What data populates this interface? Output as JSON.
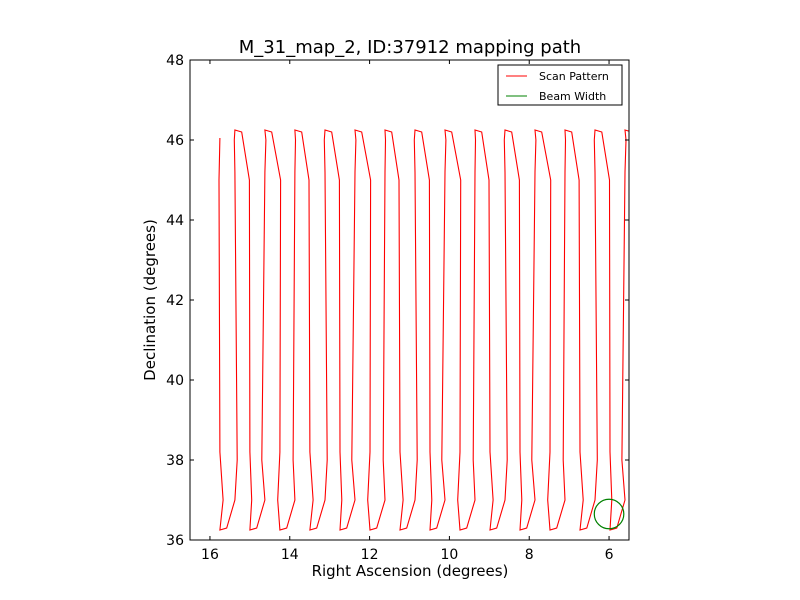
{
  "chart_data": {
    "type": "line",
    "title": "M_31_map_2, ID:37912 mapping path",
    "xlabel": "Right Ascension (degrees)",
    "ylabel": "Declination (degrees)",
    "xlim": [
      16.5,
      5.5
    ],
    "ylim": [
      36,
      48
    ],
    "x_inverted": true,
    "xticks": [
      16,
      14,
      12,
      10,
      8,
      6
    ],
    "yticks": [
      36,
      38,
      40,
      42,
      44,
      46,
      48
    ],
    "grid": false,
    "legend": {
      "location": "upper right",
      "entries": [
        {
          "label": "Scan Pattern",
          "color": "#ff0000"
        },
        {
          "label": "Beam Width",
          "color": "#008000"
        }
      ]
    },
    "scan_pattern": {
      "color": "#ff0000",
      "dec_bottom": 36.25,
      "dec_top": 46.25,
      "dec_start": 46.05,
      "ra_first": 15.75,
      "ra_last": 5.6,
      "num_legs": 28
    },
    "beam": {
      "color": "#008000",
      "ra": 6.0,
      "dec": 36.65,
      "radius_deg": 0.37
    }
  }
}
